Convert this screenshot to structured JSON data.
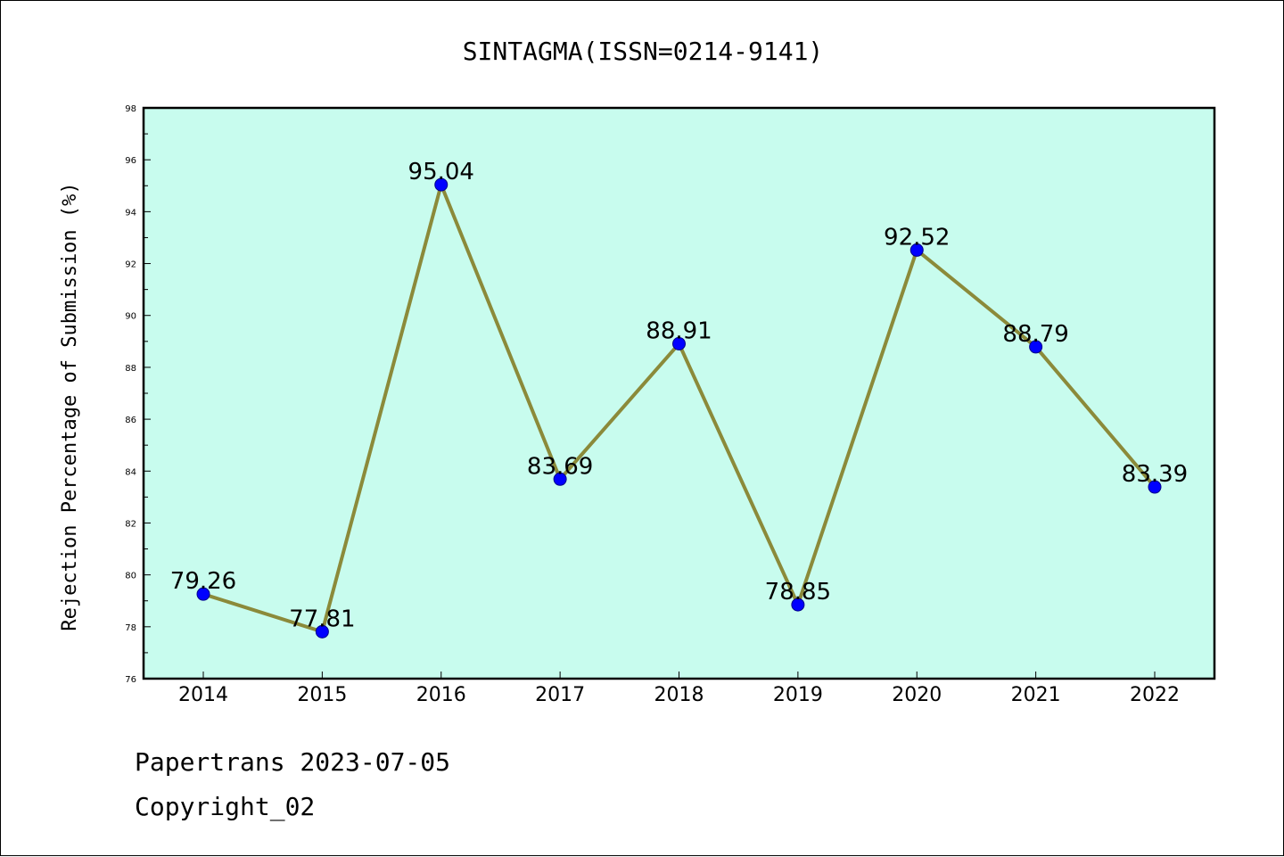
{
  "chart_data": {
    "type": "line",
    "title": "SINTAGMA(ISSN=0214-9141)",
    "xlabel": "",
    "ylabel": "Rejection Percentage of Submission (%)",
    "x": [
      "2014",
      "2015",
      "2016",
      "2017",
      "2018",
      "2019",
      "2020",
      "2021",
      "2022"
    ],
    "series": [
      {
        "values": [
          79.26,
          77.81,
          95.04,
          83.69,
          88.91,
          78.85,
          92.52,
          88.79,
          83.39
        ],
        "labels": [
          "79.26",
          "77.81",
          "95.04",
          "83.69",
          "88.91",
          "78.85",
          "92.52",
          "88.79",
          "83.39"
        ]
      }
    ],
    "ylim": [
      76,
      98
    ],
    "yticks": [
      "76",
      "78",
      "80",
      "82",
      "84",
      "86",
      "88",
      "90",
      "92",
      "94",
      "96",
      "98"
    ],
    "grid": false,
    "plot_background": "#c8fcee",
    "line_color": "#8b8a3a",
    "marker_color": "#0000ff"
  },
  "footer": {
    "line1": "Papertrans 2023-07-05",
    "line2": "Copyright_02"
  }
}
